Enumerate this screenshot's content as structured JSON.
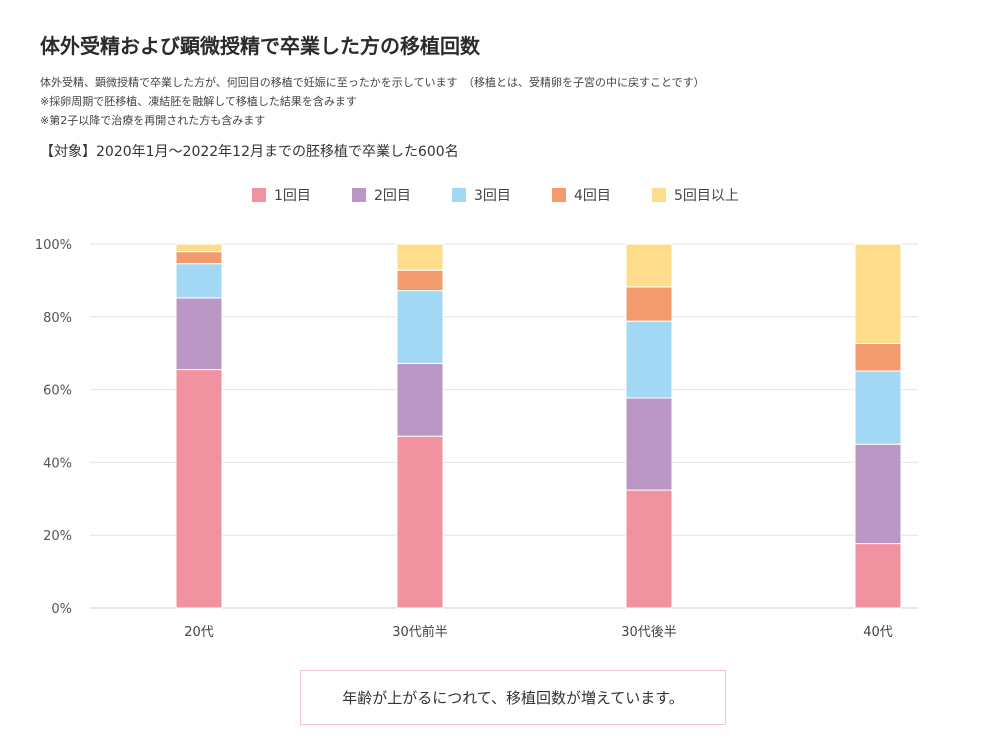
{
  "header": {
    "title": "体外受精および顕微授精で卒業した方の移植回数",
    "desc_lines": [
      "体外受精、顕微授精で卒業した方が、何回目の移植で妊娠に至ったかを示しています　（移植とは、受精卵を子宮の中に戻すことです）",
      "※採卵周期で胚移植、凍結胚を融解して移植した結果を含みます",
      "※第2子以降で治療を再開された方も含みます"
    ],
    "target": "【対象】2020年1月〜2022年12月までの胚移植で卒業した600名"
  },
  "note": "年齢が上がるにつれて、移植回数が増えています。",
  "chart_data": {
    "type": "bar",
    "stacked": true,
    "percent": true,
    "categories": [
      "20代",
      "30代前半",
      "30代後半",
      "40代"
    ],
    "series": [
      {
        "name": "1回目",
        "color": "#f0929f",
        "values": [
          65.5,
          47.2,
          32.4,
          17.7
        ]
      },
      {
        "name": "2回目",
        "color": "#bb97c6",
        "values": [
          19.7,
          20.0,
          25.3,
          27.3
        ]
      },
      {
        "name": "3回目",
        "color": "#a3d8f4",
        "values": [
          9.4,
          20.0,
          21.1,
          20.1
        ]
      },
      {
        "name": "4回目",
        "color": "#f29c6e",
        "values": [
          3.3,
          5.6,
          9.4,
          7.6
        ]
      },
      {
        "name": "5回目以上",
        "color": "#fddd8c",
        "values": [
          2.1,
          7.2,
          11.8,
          27.3
        ]
      }
    ],
    "ylim": [
      0,
      100
    ],
    "yticks": [
      "0%",
      "20%",
      "40%",
      "60%",
      "80%",
      "100%"
    ],
    "grid": true,
    "legend": "top-center"
  }
}
